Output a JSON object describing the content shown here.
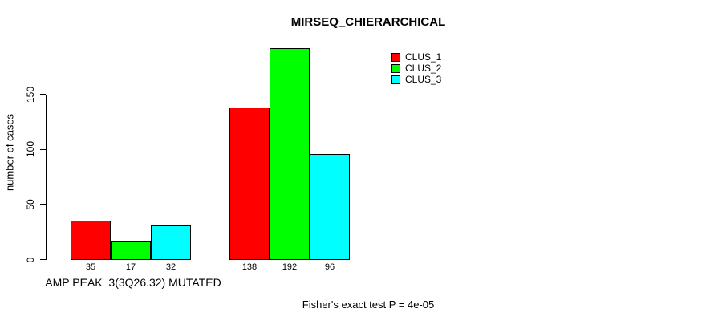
{
  "chart_data": {
    "type": "bar",
    "title": "MIRSEQ_CHIERARCHICAL",
    "ylabel": "number of cases",
    "xlabel": "AMP PEAK  3(3Q26.32) MUTATED",
    "annotation": "Fisher's exact test P = 4e-05",
    "categories": [
      "AMP PEAK  3(3Q26.32) MUTATED",
      ""
    ],
    "series": [
      {
        "name": "CLUS_1",
        "color": "#ff0000",
        "values": [
          35,
          138
        ]
      },
      {
        "name": "CLUS_2",
        "color": "#00ff00",
        "values": [
          17,
          192
        ]
      },
      {
        "name": "CLUS_3",
        "color": "#00ffff",
        "values": [
          32,
          96
        ]
      }
    ],
    "yticks": [
      0,
      50,
      100,
      150
    ],
    "ylim": [
      0,
      200
    ],
    "bar_value_labels": true,
    "grid": false,
    "legend_position": "top-right",
    "bar_border_color": "#000000",
    "axis_color": "#000000",
    "background_color": "#ffffff"
  }
}
